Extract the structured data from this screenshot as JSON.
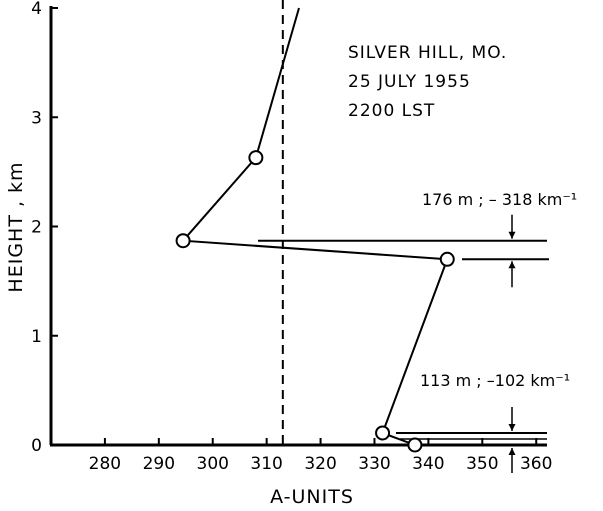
{
  "chart_data": {
    "type": "line",
    "xlabel": "A-UNITS",
    "ylabel": "HEIGHT , km",
    "xlim": [
      270,
      362
    ],
    "ylim": [
      0,
      4
    ],
    "x_ticks": [
      280,
      290,
      300,
      310,
      320,
      330,
      340,
      350,
      360
    ],
    "y_ticks": [
      0,
      1,
      2,
      3,
      4
    ],
    "annotation_lines": [
      "SILVER HILL, MO.",
      "25 JULY 1955",
      "2200 LST"
    ],
    "series": [
      {
        "points": [
          {
            "x": 337.5,
            "y": 0.0
          },
          {
            "x": 331.5,
            "y": 0.11
          },
          {
            "x": 343.5,
            "y": 1.7
          },
          {
            "x": 294.5,
            "y": 1.87
          },
          {
            "x": 308.0,
            "y": 2.63
          },
          {
            "x": 316.0,
            "y": 4.0
          }
        ],
        "markers": [
          {
            "x": 337.5,
            "y": 0.0
          },
          {
            "x": 331.5,
            "y": 0.11
          },
          {
            "x": 343.5,
            "y": 1.7
          },
          {
            "x": 294.5,
            "y": 1.87
          },
          {
            "x": 308.0,
            "y": 2.63
          }
        ]
      }
    ],
    "reference_line": {
      "x": 313,
      "style": "dashed"
    },
    "layers": [
      {
        "label": "176 m ; – 318 km⁻¹",
        "bottom": 1.7,
        "top": 1.87
      },
      {
        "label": "113 m ; –102 km⁻¹",
        "bottom": 0.0,
        "top": 0.11
      }
    ]
  }
}
